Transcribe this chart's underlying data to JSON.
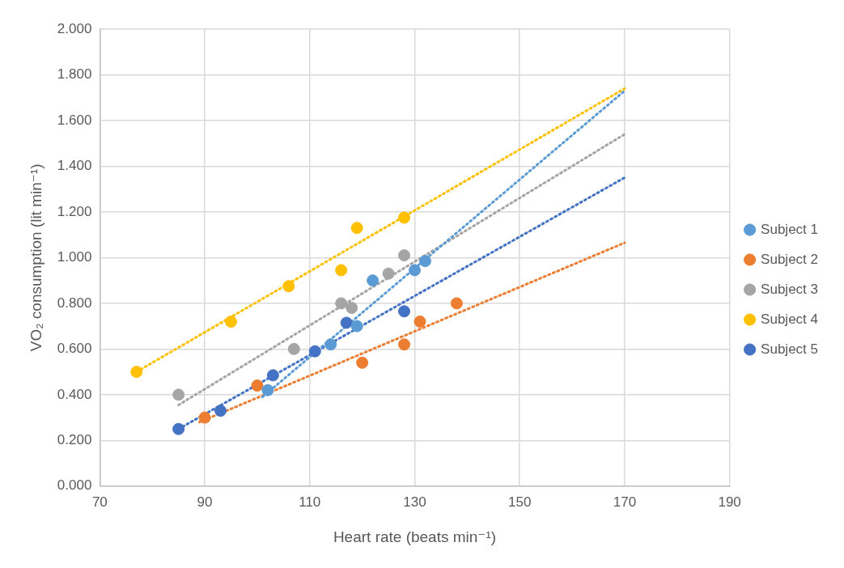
{
  "chart_data": {
    "type": "scatter",
    "xlabel": "Heart rate (beats min⁻¹)",
    "ylabel": "VO₂ consumption (lit min⁻¹)",
    "xlim": [
      70,
      190
    ],
    "xticks": [
      70,
      90,
      110,
      130,
      150,
      170,
      190
    ],
    "ylim": [
      0,
      2
    ],
    "yticks": [
      {
        "value": 0,
        "label": "0.000"
      },
      {
        "value": 0.2,
        "label": "0.200"
      },
      {
        "value": 0.4,
        "label": "0.400"
      },
      {
        "value": 0.6,
        "label": "0.600"
      },
      {
        "value": 0.8,
        "label": "0.800"
      },
      {
        "value": 1,
        "label": "1.000"
      },
      {
        "value": 1.2,
        "label": "1.200"
      },
      {
        "value": 1.4,
        "label": "1.400"
      },
      {
        "value": 1.6,
        "label": "1.600"
      },
      {
        "value": 1.8,
        "label": "1.800"
      },
      {
        "value": 2,
        "label": "2.000"
      }
    ],
    "grid": true,
    "legend": "right",
    "marker": "circle",
    "series": [
      {
        "name": "Subject 1",
        "color": "#5b9bd5",
        "x": [
          102,
          114,
          119,
          122,
          130,
          132
        ],
        "values": [
          0.42,
          0.62,
          0.7,
          0.9,
          0.945,
          0.985
        ]
      },
      {
        "name": "Subject 2",
        "color": "#ed7d31",
        "x": [
          90,
          100,
          120,
          128,
          131,
          138
        ],
        "values": [
          0.3,
          0.44,
          0.54,
          0.62,
          0.72,
          0.8
        ]
      },
      {
        "name": "Subject 3",
        "color": "#a5a5a5",
        "x": [
          85,
          107,
          116,
          118,
          125,
          128
        ],
        "values": [
          0.4,
          0.6,
          0.8,
          0.78,
          0.93,
          1.01
        ]
      },
      {
        "name": "Subject 4",
        "color": "#ffc000",
        "x": [
          77,
          95,
          106,
          116,
          119,
          128
        ],
        "values": [
          0.5,
          0.72,
          0.875,
          0.945,
          1.13,
          1.175
        ]
      },
      {
        "name": "Subject 5",
        "color": "#4472c4",
        "x": [
          85,
          93,
          103,
          111,
          117,
          128
        ],
        "values": [
          0.25,
          0.33,
          0.485,
          0.59,
          0.715,
          0.765
        ]
      },
      {
        "type": "line",
        "color": "#5b9bd5",
        "line_style": "dotted",
        "marker": "none",
        "x": [
          101,
          170
        ],
        "values": [
          0.39,
          1.73
        ]
      },
      {
        "type": "line",
        "color": "#ed7d31",
        "line_style": "dotted",
        "marker": "none",
        "x": [
          89,
          170
        ],
        "values": [
          0.28,
          1.065
        ]
      },
      {
        "type": "line",
        "color": "#a5a5a5",
        "line_style": "dotted",
        "marker": "none",
        "x": [
          85,
          170
        ],
        "values": [
          0.355,
          1.54
        ]
      },
      {
        "type": "line",
        "color": "#ffc000",
        "line_style": "dotted",
        "marker": "none",
        "x": [
          77,
          170
        ],
        "values": [
          0.5,
          1.74
        ]
      },
      {
        "type": "line",
        "color": "#4472c4",
        "line_style": "dotted",
        "marker": "none",
        "x": [
          85,
          170
        ],
        "values": [
          0.25,
          1.35
        ]
      }
    ]
  }
}
